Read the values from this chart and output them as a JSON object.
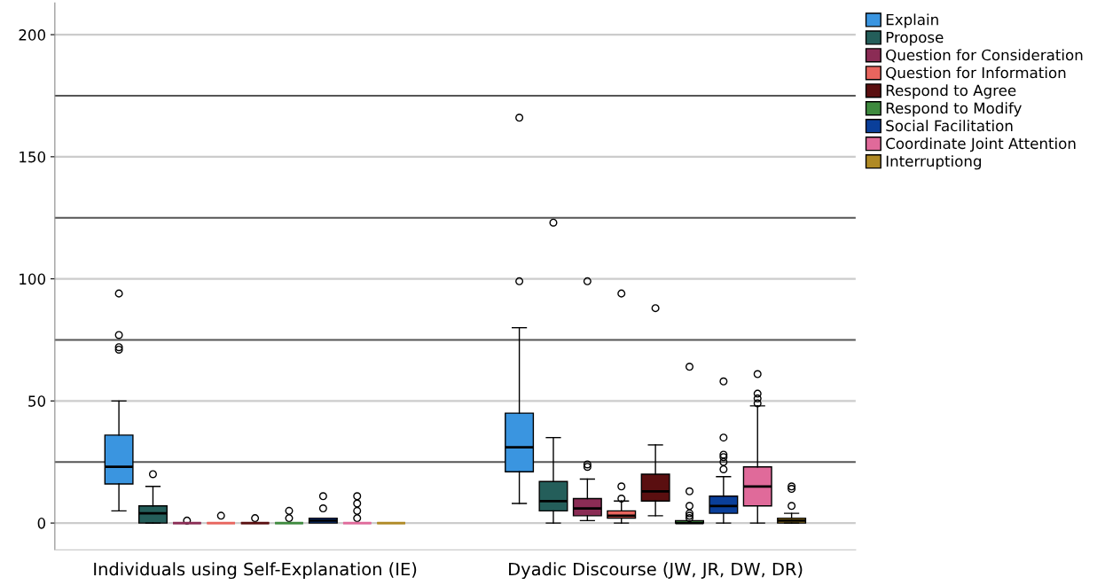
{
  "chart_data": {
    "type": "box",
    "categories": [
      "Individuals using Self-Explanation (IE)",
      "Dyadic Discourse (JW, JR, DW, DR)"
    ],
    "ylim": [
      -11,
      213
    ],
    "yticks": [
      0,
      50,
      100,
      150,
      200
    ],
    "grid": "y",
    "legend": "top right",
    "ref_lines": [
      {
        "axis": "y",
        "value": 25,
        "color": "#555555"
      },
      {
        "axis": "y",
        "value": 75,
        "color": "#555555"
      },
      {
        "axis": "y",
        "value": 125,
        "color": "#555555"
      },
      {
        "axis": "y",
        "value": 175,
        "color": "#555555"
      }
    ],
    "series": [
      {
        "name": "Explain",
        "color": "#3a95e0",
        "boxes": [
          {
            "low": 5,
            "q1": 16,
            "median": 23,
            "q3": 36,
            "high": 50,
            "outliers": [
              71,
              72,
              77,
              94
            ]
          },
          {
            "low": 8,
            "q1": 21,
            "median": 31,
            "q3": 45,
            "high": 80,
            "outliers": [
              99,
              166
            ]
          }
        ]
      },
      {
        "name": "Propose",
        "color": "#245e5a",
        "boxes": [
          {
            "low": 0,
            "q1": 0,
            "median": 4,
            "q3": 7,
            "high": 15,
            "outliers": [
              20
            ]
          },
          {
            "low": 0,
            "q1": 5,
            "median": 9,
            "q3": 17,
            "high": 35,
            "outliers": [
              123
            ]
          }
        ]
      },
      {
        "name": "Question for Consideration",
        "color": "#8b2c55",
        "boxes": [
          {
            "low": 0,
            "q1": 0,
            "median": 0,
            "q3": 0,
            "high": 0,
            "outliers": [
              1
            ]
          },
          {
            "low": 1,
            "q1": 3,
            "median": 6,
            "q3": 10,
            "high": 18,
            "outliers": [
              23,
              24,
              99
            ]
          }
        ]
      },
      {
        "name": "Question for Information",
        "color": "#e8655e",
        "boxes": [
          {
            "low": 0,
            "q1": 0,
            "median": 0,
            "q3": 0,
            "high": 0,
            "outliers": [
              3
            ]
          },
          {
            "low": 0,
            "q1": 2,
            "median": 3,
            "q3": 5,
            "high": 9,
            "outliers": [
              10,
              15,
              94
            ]
          }
        ]
      },
      {
        "name": "Respond to Agree",
        "color": "#5a0f10",
        "boxes": [
          {
            "low": 0,
            "q1": 0,
            "median": 0,
            "q3": 0,
            "high": 0,
            "outliers": [
              2
            ]
          },
          {
            "low": 3,
            "q1": 9,
            "median": 13,
            "q3": 20,
            "high": 32,
            "outliers": [
              88
            ]
          }
        ]
      },
      {
        "name": "Respond to Modify",
        "color": "#3e8a3e",
        "boxes": [
          {
            "low": 0,
            "q1": 0,
            "median": 0,
            "q3": 0,
            "high": 0,
            "outliers": [
              2,
              5
            ]
          },
          {
            "low": 0,
            "q1": 0,
            "median": 0,
            "q3": 1,
            "high": 1,
            "outliers": [
              2,
              3,
              4,
              7,
              13,
              64
            ]
          }
        ]
      },
      {
        "name": "Social Facilitation",
        "color": "#0a3f9a",
        "boxes": [
          {
            "low": 0,
            "q1": 0,
            "median": 1,
            "q3": 2,
            "high": 2,
            "outliers": [
              6,
              11
            ]
          },
          {
            "low": 0,
            "q1": 4,
            "median": 7,
            "q3": 11,
            "high": 19,
            "outliers": [
              22,
              25,
              27,
              28,
              35,
              58
            ]
          }
        ]
      },
      {
        "name": "Coordinate Joint Attention",
        "color": "#e06a9a",
        "boxes": [
          {
            "low": 0,
            "q1": 0,
            "median": 0,
            "q3": 0,
            "high": 0,
            "outliers": [
              2,
              5,
              8,
              11
            ]
          },
          {
            "low": 0,
            "q1": 7,
            "median": 15,
            "q3": 23,
            "high": 48,
            "outliers": [
              49,
              51,
              53,
              61
            ]
          }
        ]
      },
      {
        "name": "Interruptiong",
        "color": "#b08a25",
        "boxes": [
          {
            "low": 0,
            "q1": 0,
            "median": 0,
            "q3": 0,
            "high": 0
          },
          {
            "low": 0,
            "q1": 0,
            "median": 1,
            "q3": 2,
            "high": 4,
            "outliers": [
              7,
              14,
              15
            ]
          }
        ]
      }
    ]
  }
}
